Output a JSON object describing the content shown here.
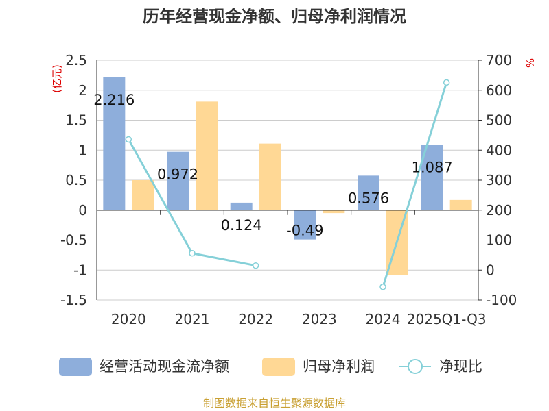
{
  "chart_data": {
    "type": "bar",
    "title": "历年经营现金净额、归母净利润情况",
    "categories": [
      "2020",
      "2021",
      "2022",
      "2023",
      "2024",
      "2025Q1-Q3"
    ],
    "y_left": {
      "unit": "(亿元)",
      "ylim": [
        -1.5,
        2.5
      ],
      "ticks": [
        "-1.5",
        "-1",
        "-0.5",
        "0",
        "0.5",
        "1",
        "1.5",
        "2",
        "2.5"
      ]
    },
    "y_right": {
      "unit": "%",
      "ylim": [
        -100,
        700
      ],
      "ticks": [
        "-100",
        "0",
        "100",
        "200",
        "300",
        "400",
        "500",
        "600",
        "700"
      ]
    },
    "series": [
      {
        "name": "经营活动现金流净额",
        "type": "bar",
        "axis": "left",
        "color": "#8eaedb",
        "values": [
          2.216,
          0.972,
          0.124,
          -0.49,
          0.576,
          1.087
        ],
        "labels": [
          "2.216",
          "0.972",
          "0.124",
          "-0.49",
          "0.576",
          "1.087"
        ]
      },
      {
        "name": "归母净利润",
        "type": "bar",
        "axis": "left",
        "color": "#ffd895",
        "values": [
          0.5,
          1.81,
          1.11,
          -0.05,
          -1.08,
          0.17
        ]
      },
      {
        "name": "净现比",
        "type": "line",
        "axis": "right",
        "color": "#85d0d8",
        "values": [
          436,
          56,
          15,
          null,
          -56,
          626
        ]
      }
    ],
    "grid": true,
    "legend": "bottom"
  },
  "source_text": "制图数据来自恒生聚源数据库"
}
